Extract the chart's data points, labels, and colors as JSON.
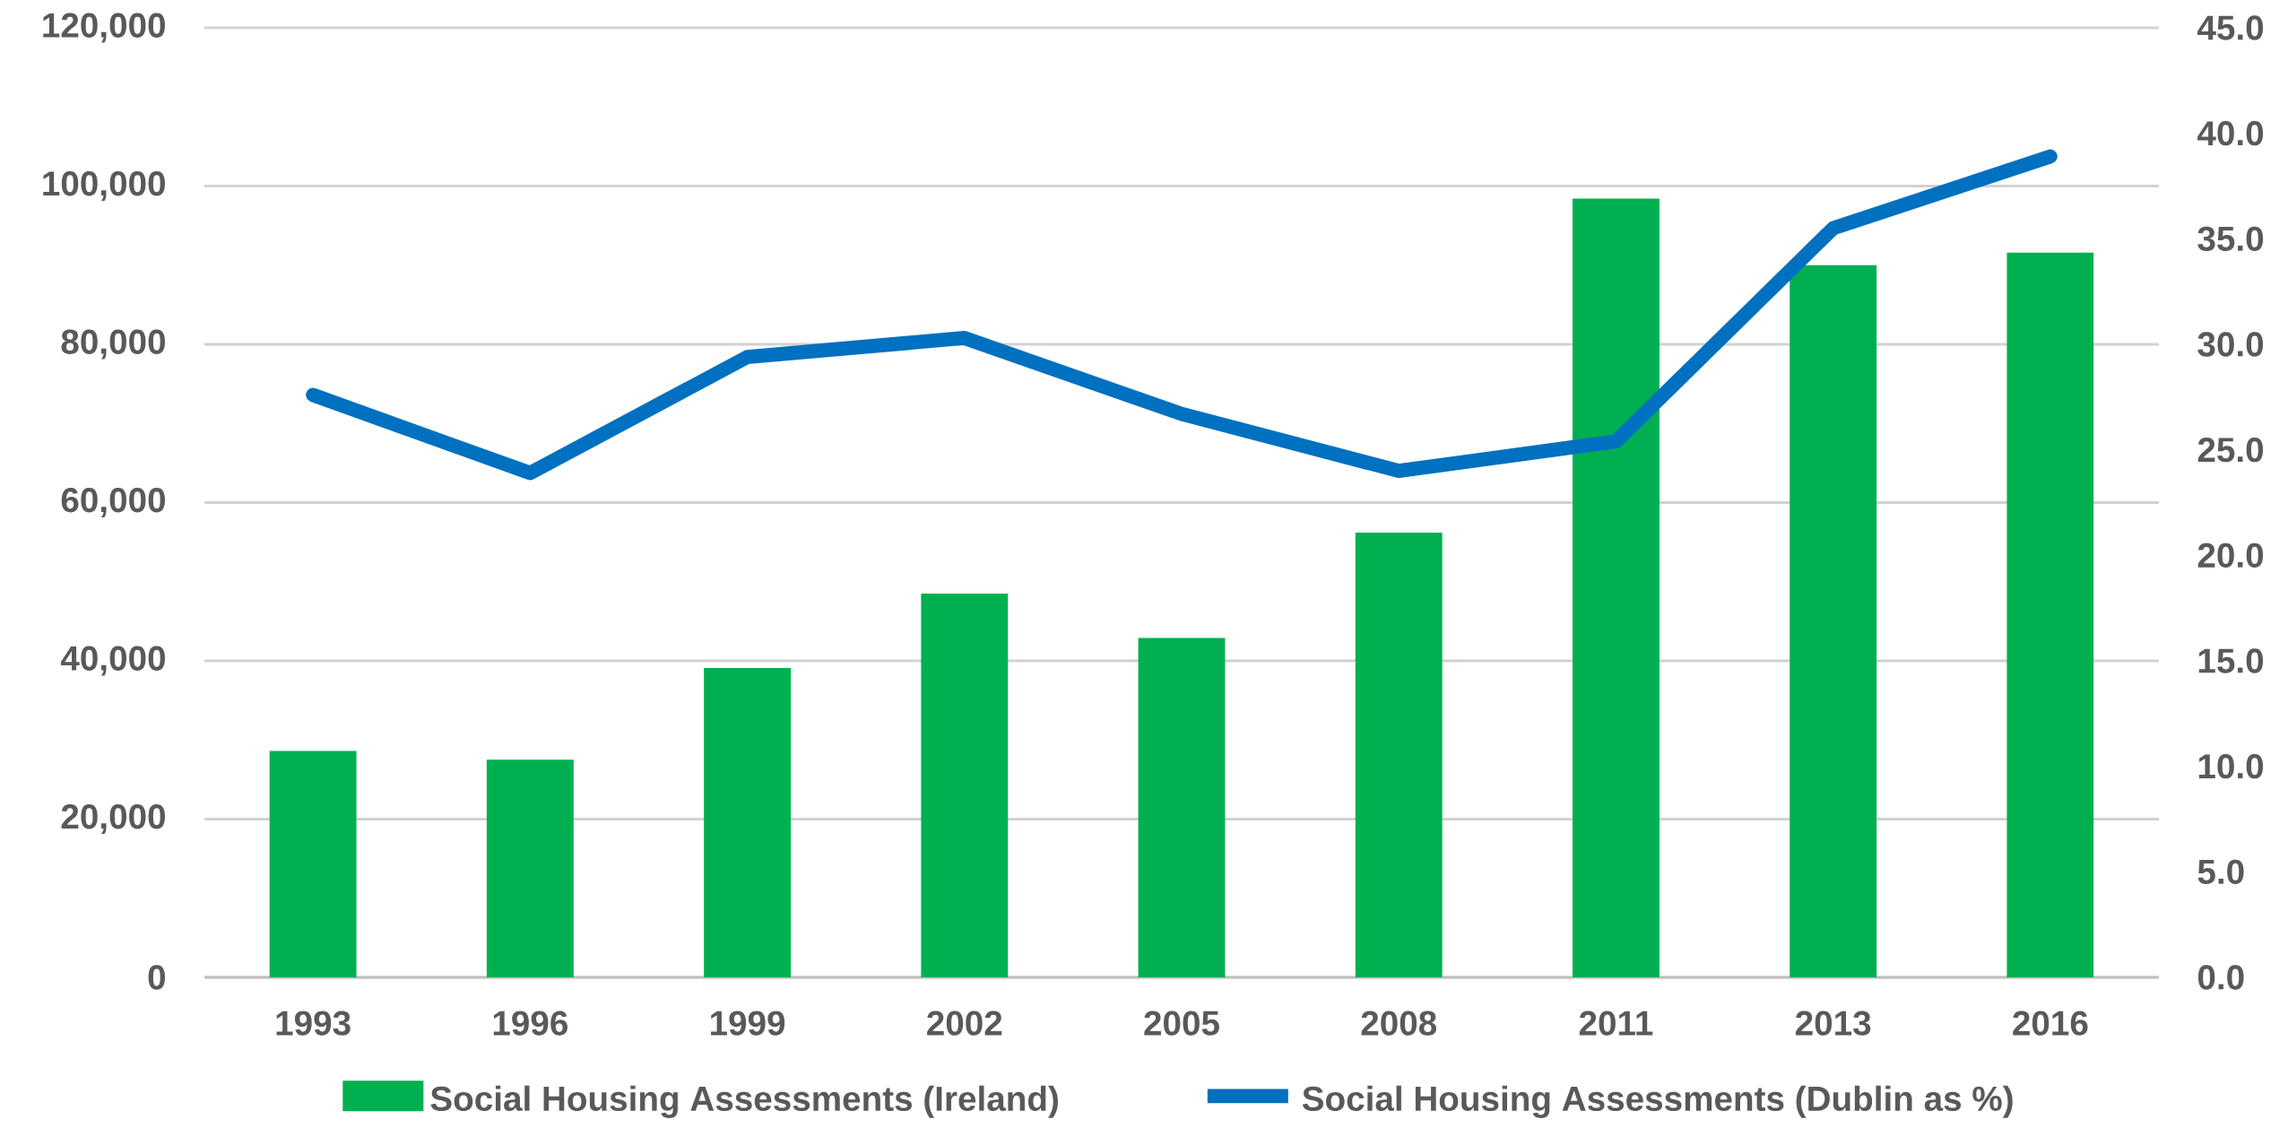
{
  "chart_data": {
    "type": "bar",
    "categories": [
      "1993",
      "1996",
      "1999",
      "2002",
      "2005",
      "2008",
      "2011",
      "2013",
      "2016"
    ],
    "series": [
      {
        "name": "Social Housing Assessments (Ireland)",
        "color": "#00b050",
        "values": [
          28600,
          27500,
          39100,
          48500,
          42900,
          56200,
          98400,
          90000,
          91600
        ]
      },
      {
        "name": "Social Housing Assessments (Dublin as %)",
        "type": "line",
        "axis": "y2",
        "color": "#0070c0",
        "values": [
          27.6,
          23.9,
          29.4,
          30.3,
          26.7,
          24.0,
          25.4,
          35.5,
          38.9
        ]
      }
    ],
    "ylim": [
      0,
      120000
    ],
    "yticks": [
      0,
      {
        "value": 20000,
        "label": "20,000"
      },
      {
        "value": 40000,
        "label": "40,000"
      },
      {
        "value": 60000,
        "label": "60,000"
      },
      {
        "value": 80000,
        "label": "80,000"
      },
      {
        "value": 100000,
        "label": "100,000"
      },
      {
        "value": 120000,
        "label": "120,000"
      }
    ],
    "y2lim": [
      0,
      45
    ],
    "y2ticks": [
      {
        "value": 0,
        "label": "0.0"
      },
      {
        "value": 5,
        "label": "5.0"
      },
      {
        "value": 10,
        "label": "10.0"
      },
      {
        "value": 15,
        "label": "15.0"
      },
      {
        "value": 20,
        "label": "20.0"
      },
      {
        "value": 25,
        "label": "25.0"
      },
      {
        "value": 30,
        "label": "30.0"
      },
      {
        "value": 35,
        "label": "35.0"
      },
      {
        "value": 40,
        "label": "40.0"
      },
      {
        "value": 45,
        "label": "45.0"
      }
    ],
    "grid": "y",
    "legend": "bottom"
  }
}
